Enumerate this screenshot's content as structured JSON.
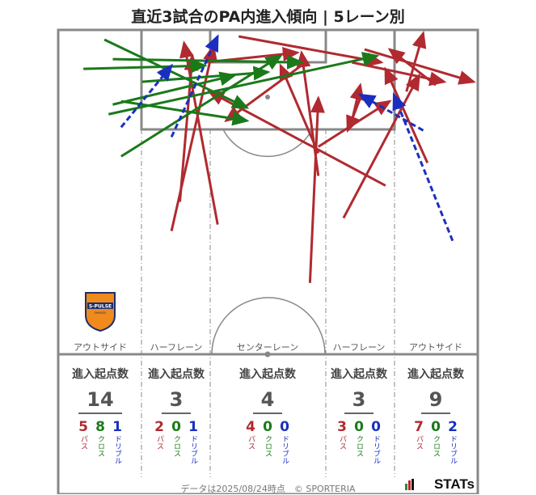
{
  "title": "直近3試合のPA内進入傾向 | 5レーン別",
  "colors": {
    "pass": "#b02a30",
    "cross": "#1a7a1a",
    "dribble": "#1a2fbf",
    "pitch_line": "#888888"
  },
  "lanes": [
    {
      "name": "アウトサイド",
      "header": "進入起点数",
      "total": "14",
      "pass": "5",
      "cross": "8",
      "dribble": "1"
    },
    {
      "name": "ハーフレーン",
      "header": "進入起点数",
      "total": "3",
      "pass": "2",
      "cross": "0",
      "dribble": "1"
    },
    {
      "name": "センターレーン",
      "header": "進入起点数",
      "total": "4",
      "pass": "4",
      "cross": "0",
      "dribble": "0"
    },
    {
      "name": "ハーフレーン",
      "header": "進入起点数",
      "total": "3",
      "pass": "3",
      "cross": "0",
      "dribble": "0"
    },
    {
      "name": "アウトサイド",
      "header": "進入起点数",
      "total": "9",
      "pass": "7",
      "cross": "0",
      "dribble": "2"
    }
  ],
  "breakdown_labels": {
    "pass": "パス",
    "cross": "クロス",
    "dribble": "ドリブル"
  },
  "crest": {
    "line1": "S-PULSE",
    "line2": "SHIMIZU"
  },
  "footer": "データは2025/08/24時点　© SPORTERIA",
  "brand": "STATs",
  "chart_data": {
    "type": "scatter",
    "description_units": "pitch coordinates: x 0-100 across width (left to right), y 0-100 from goal line (0) toward halfway line (100)",
    "series": [
      {
        "name": "パス",
        "arrows": [
          [
            27,
            62,
            37,
            5
          ],
          [
            29,
            53,
            32,
            8
          ],
          [
            38,
            60,
            30,
            4
          ],
          [
            35,
            10,
            57,
            7
          ],
          [
            62,
            45,
            58,
            7
          ],
          [
            78,
            48,
            36,
            19
          ],
          [
            43,
            2,
            77,
            10
          ],
          [
            62,
            36,
            79,
            22
          ],
          [
            62,
            38,
            53,
            11
          ],
          [
            59,
            10,
            40,
            28
          ],
          [
            70,
            28,
            72,
            17
          ],
          [
            60,
            78,
            62,
            21
          ],
          [
            73,
            6,
            99,
            16
          ],
          [
            72,
            21,
            69,
            31
          ],
          [
            70,
            10,
            92,
            16
          ],
          [
            68,
            58,
            86,
            14
          ],
          [
            90,
            17,
            79,
            6
          ],
          [
            83,
            19,
            87,
            1
          ],
          [
            88,
            41,
            78,
            12
          ]
        ]
      },
      {
        "name": "クロス",
        "arrows": [
          [
            6,
            12,
            35,
            11
          ],
          [
            11,
            3,
            45,
            24
          ],
          [
            13,
            9,
            58,
            10
          ],
          [
            13,
            23,
            42,
            14
          ],
          [
            15,
            22,
            45,
            28
          ],
          [
            15,
            39,
            53,
            8
          ],
          [
            20,
            16,
            50,
            13
          ],
          [
            12,
            26,
            76,
            8
          ]
        ]
      },
      {
        "name": "ドリブル",
        "arrows": [
          [
            15,
            30,
            27,
            11
          ],
          [
            27,
            33,
            38,
            2
          ],
          [
            94,
            65,
            80,
            20
          ],
          [
            87,
            31,
            72,
            20
          ]
        ]
      }
    ]
  }
}
